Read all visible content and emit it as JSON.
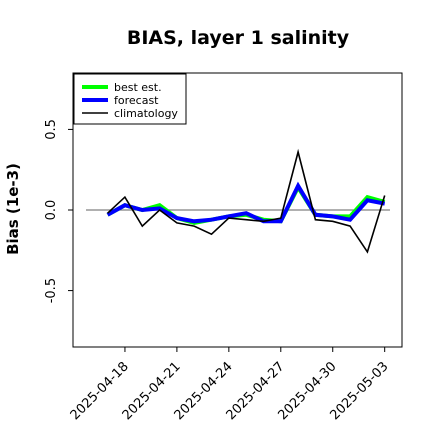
{
  "chart_data": {
    "type": "line",
    "title": "BIAS, layer 1 salinity",
    "xlabel": "",
    "ylabel": "Bias (1e-3)",
    "ylim": [
      -0.85,
      0.85
    ],
    "xlim": [
      "2025-04-15",
      "2025-05-04"
    ],
    "yticks": [
      -0.5,
      0.0,
      0.5
    ],
    "ytick_labels": [
      "-0.5",
      "0.0",
      "0.5"
    ],
    "xticks": [
      "2025-04-18",
      "2025-04-21",
      "2025-04-24",
      "2025-04-27",
      "2025-04-30",
      "2025-05-03"
    ],
    "xtick_colors": [
      "#000000",
      "#000000",
      "#228b22",
      "#000000",
      "#000000",
      "#000000"
    ],
    "reference_line": 0.0,
    "grid": false,
    "legend_position": "top-left",
    "series": [
      {
        "name": "best est.",
        "color": "#00ff00",
        "x": [
          "2025-04-17",
          "2025-04-18",
          "2025-04-19",
          "2025-04-20",
          "2025-04-21",
          "2025-04-22",
          "2025-04-23",
          "2025-04-24",
          "2025-04-25",
          "2025-04-26",
          "2025-04-27",
          "2025-04-28",
          "2025-04-29",
          "2025-04-30",
          "2025-05-01",
          "2025-05-02",
          "2025-05-03"
        ],
        "values": [
          -0.03,
          0.03,
          0.0,
          0.03,
          -0.05,
          -0.08,
          -0.06,
          -0.04,
          -0.03,
          -0.06,
          -0.07,
          0.14,
          -0.03,
          -0.04,
          -0.04,
          0.08,
          0.05
        ]
      },
      {
        "name": "forecast",
        "color": "#0000ff",
        "x": [
          "2025-04-17",
          "2025-04-18",
          "2025-04-19",
          "2025-04-20",
          "2025-04-21",
          "2025-04-22",
          "2025-04-23",
          "2025-04-24",
          "2025-04-25",
          "2025-04-26",
          "2025-04-27",
          "2025-04-28",
          "2025-04-29",
          "2025-04-30",
          "2025-05-01",
          "2025-05-02",
          "2025-05-03"
        ],
        "values": [
          -0.03,
          0.03,
          0.0,
          0.01,
          -0.05,
          -0.07,
          -0.06,
          -0.04,
          -0.02,
          -0.07,
          -0.07,
          0.15,
          -0.03,
          -0.04,
          -0.06,
          0.06,
          0.04
        ]
      },
      {
        "name": "climatology",
        "color": "#000000",
        "x": [
          "2025-04-17",
          "2025-04-18",
          "2025-04-19",
          "2025-04-20",
          "2025-04-21",
          "2025-04-22",
          "2025-04-23",
          "2025-04-24",
          "2025-04-25",
          "2025-04-26",
          "2025-04-27",
          "2025-04-28",
          "2025-04-29",
          "2025-04-30",
          "2025-05-01",
          "2025-05-02",
          "2025-05-03"
        ],
        "values": [
          -0.02,
          0.08,
          -0.1,
          0.0,
          -0.08,
          -0.1,
          -0.15,
          -0.05,
          -0.06,
          -0.07,
          -0.05,
          0.36,
          -0.06,
          -0.07,
          -0.1,
          -0.26,
          0.09
        ]
      }
    ]
  }
}
